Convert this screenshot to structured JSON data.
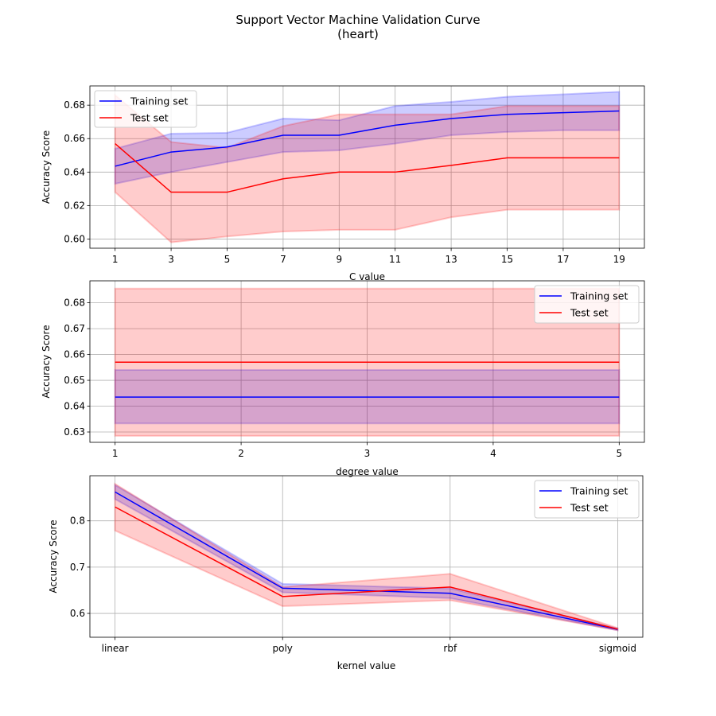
{
  "figure": {
    "title": "Support Vector Machine Validation Curve",
    "subtitle": "(heart)"
  },
  "chart_data": [
    {
      "type": "line",
      "xlabel": "C value",
      "ylabel": "Accuracy Score",
      "x": [
        1,
        3,
        5,
        7,
        9,
        11,
        13,
        15,
        17,
        19
      ],
      "x_ticks": [
        "1",
        "3",
        "5",
        "7",
        "9",
        "11",
        "13",
        "15",
        "17",
        "19"
      ],
      "xlim": [
        0.1,
        19.9
      ],
      "ylim": [
        0.5945,
        0.6915
      ],
      "y_ticks": [
        "0.60",
        "0.62",
        "0.64",
        "0.66",
        "0.68"
      ],
      "y_tick_values": [
        0.6,
        0.62,
        0.64,
        0.66,
        0.68
      ],
      "grid": true,
      "legend": "upper-left",
      "series": [
        {
          "name": "Training set",
          "color": "#0000ff",
          "values": [
            0.6435,
            0.652,
            0.655,
            0.662,
            0.662,
            0.668,
            0.672,
            0.6745,
            0.6755,
            0.6765
          ],
          "lower": [
            0.633,
            0.64,
            0.646,
            0.652,
            0.653,
            0.657,
            0.662,
            0.664,
            0.665,
            0.665
          ],
          "upper": [
            0.654,
            0.663,
            0.6635,
            0.672,
            0.671,
            0.6795,
            0.682,
            0.685,
            0.6865,
            0.688
          ]
        },
        {
          "name": "Test set",
          "color": "#ff0000",
          "values": [
            0.657,
            0.628,
            0.628,
            0.636,
            0.64,
            0.64,
            0.644,
            0.6485,
            0.6485,
            0.6485
          ],
          "lower": [
            0.628,
            0.598,
            0.6015,
            0.6045,
            0.6055,
            0.6055,
            0.613,
            0.6175,
            0.6175,
            0.6175
          ],
          "upper": [
            0.686,
            0.658,
            0.6545,
            0.6675,
            0.6745,
            0.6745,
            0.6745,
            0.6795,
            0.6795,
            0.6795
          ]
        }
      ]
    },
    {
      "type": "line",
      "xlabel": "degree value",
      "ylabel": "Accuracy Score",
      "x": [
        1,
        2,
        3,
        4,
        5
      ],
      "x_ticks": [
        "1",
        "2",
        "3",
        "4",
        "5"
      ],
      "xlim": [
        0.8,
        5.2
      ],
      "ylim": [
        0.626,
        0.6885
      ],
      "y_ticks": [
        "0.63",
        "0.64",
        "0.65",
        "0.66",
        "0.67",
        "0.68"
      ],
      "y_tick_values": [
        0.63,
        0.64,
        0.65,
        0.66,
        0.67,
        0.68
      ],
      "grid": true,
      "legend": "upper-right",
      "series": [
        {
          "name": "Training set",
          "color": "#0000ff",
          "values": [
            0.6435,
            0.6435,
            0.6435,
            0.6435,
            0.6435
          ],
          "lower": [
            0.6333,
            0.6333,
            0.6333,
            0.6333,
            0.6333
          ],
          "upper": [
            0.654,
            0.654,
            0.654,
            0.654,
            0.654
          ]
        },
        {
          "name": "Test set",
          "color": "#ff0000",
          "values": [
            0.657,
            0.657,
            0.657,
            0.657,
            0.657
          ],
          "lower": [
            0.6285,
            0.6285,
            0.6285,
            0.6285,
            0.6285
          ],
          "upper": [
            0.6855,
            0.6855,
            0.6855,
            0.6855,
            0.6855
          ]
        }
      ]
    },
    {
      "type": "line",
      "xlabel": "kernel value",
      "ylabel": "Accuracy Score",
      "categories": [
        "linear",
        "poly",
        "rbf",
        "sigmoid"
      ],
      "x": [
        0,
        1,
        2,
        3
      ],
      "x_ticks": [
        "linear",
        "poly",
        "rbf",
        "sigmoid"
      ],
      "xlim": [
        -0.15,
        3.15
      ],
      "ylim": [
        0.5485,
        0.8975
      ],
      "y_ticks": [
        "0.6",
        "0.7",
        "0.8"
      ],
      "y_tick_values": [
        0.6,
        0.7,
        0.8
      ],
      "grid": true,
      "legend": "upper-right",
      "series": [
        {
          "name": "Training set",
          "color": "#0000ff",
          "values": [
            0.8625,
            0.6545,
            0.6435,
            0.5655
          ],
          "lower": [
            0.847,
            0.6455,
            0.633,
            0.5635
          ],
          "upper": [
            0.8775,
            0.664,
            0.654,
            0.5675
          ]
        },
        {
          "name": "Test set",
          "color": "#ff0000",
          "values": [
            0.83,
            0.6365,
            0.657,
            0.566
          ],
          "lower": [
            0.779,
            0.6155,
            0.6285,
            0.5635
          ],
          "upper": [
            0.88,
            0.657,
            0.6855,
            0.5685
          ]
        }
      ]
    }
  ]
}
